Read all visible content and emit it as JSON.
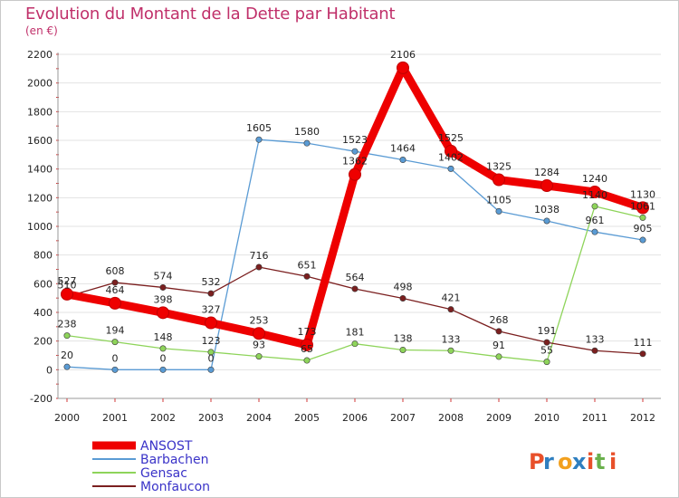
{
  "header": {
    "title": "Evolution du Montant de la Dette par Habitant",
    "subtitle": "(en €)"
  },
  "logo": {
    "text": "Proxiti",
    "colors": [
      "#e8502a",
      "#2f7fc0",
      "#f2a01e",
      "#2f7fc0",
      "#e8502a",
      "#6ab04c",
      "#e8502a"
    ]
  },
  "chart_data": {
    "type": "line",
    "title": "Evolution du Montant de la Dette par Habitant",
    "subtitle": "(en €)",
    "xlabel": "",
    "ylabel": "",
    "x": [
      "2000",
      "2001",
      "2002",
      "2003",
      "2004",
      "2005",
      "2006",
      "2007",
      "2008",
      "2009",
      "2010",
      "2011",
      "2012"
    ],
    "ylim": [
      -200,
      2200
    ],
    "yticks": [
      "-200",
      "0",
      "200",
      "400",
      "600",
      "800",
      "1000",
      "1200",
      "1400",
      "1600",
      "1800",
      "2000",
      "2200"
    ],
    "grid": "horizontal",
    "legend_position": "bottom-left",
    "series": [
      {
        "name": "ANSOST",
        "color": "#ee0000",
        "values": [
          527,
          464,
          398,
          327,
          253,
          173,
          1362,
          2106,
          1525,
          1325,
          1284,
          1240,
          1130
        ],
        "labels": [
          "527",
          "464",
          "398",
          "327",
          "253",
          "173",
          "1362",
          "2106",
          "1525",
          "1325",
          "1284",
          "1240",
          "1130"
        ]
      },
      {
        "name": "Barbachen",
        "color": "#5a9bd4",
        "values": [
          20,
          0,
          0,
          0,
          1605,
          1580,
          1523,
          1464,
          1402,
          1105,
          1038,
          961,
          905
        ],
        "labels": [
          "20",
          "0",
          "0",
          "0",
          "1605",
          "1580",
          "1523",
          "1464",
          "1402",
          "1105",
          "1038",
          "961",
          "905"
        ]
      },
      {
        "name": "Gensac",
        "color": "#8ed45a",
        "values": [
          238,
          194,
          148,
          123,
          93,
          65,
          181,
          138,
          133,
          91,
          55,
          1140,
          1061
        ],
        "labels": [
          "238",
          "194",
          "148",
          "123",
          "93",
          "65",
          "181",
          "138",
          "133",
          "91",
          "55",
          "1140",
          "1061"
        ]
      },
      {
        "name": "Monfaucon",
        "color": "#7b1f1f",
        "values": [
          510,
          608,
          574,
          532,
          716,
          651,
          564,
          498,
          421,
          268,
          191,
          133,
          111
        ],
        "labels": [
          "510",
          "608",
          "574",
          "532",
          "716",
          "651",
          "564",
          "498",
          "421",
          "268",
          "191",
          "133",
          "111"
        ]
      }
    ]
  }
}
